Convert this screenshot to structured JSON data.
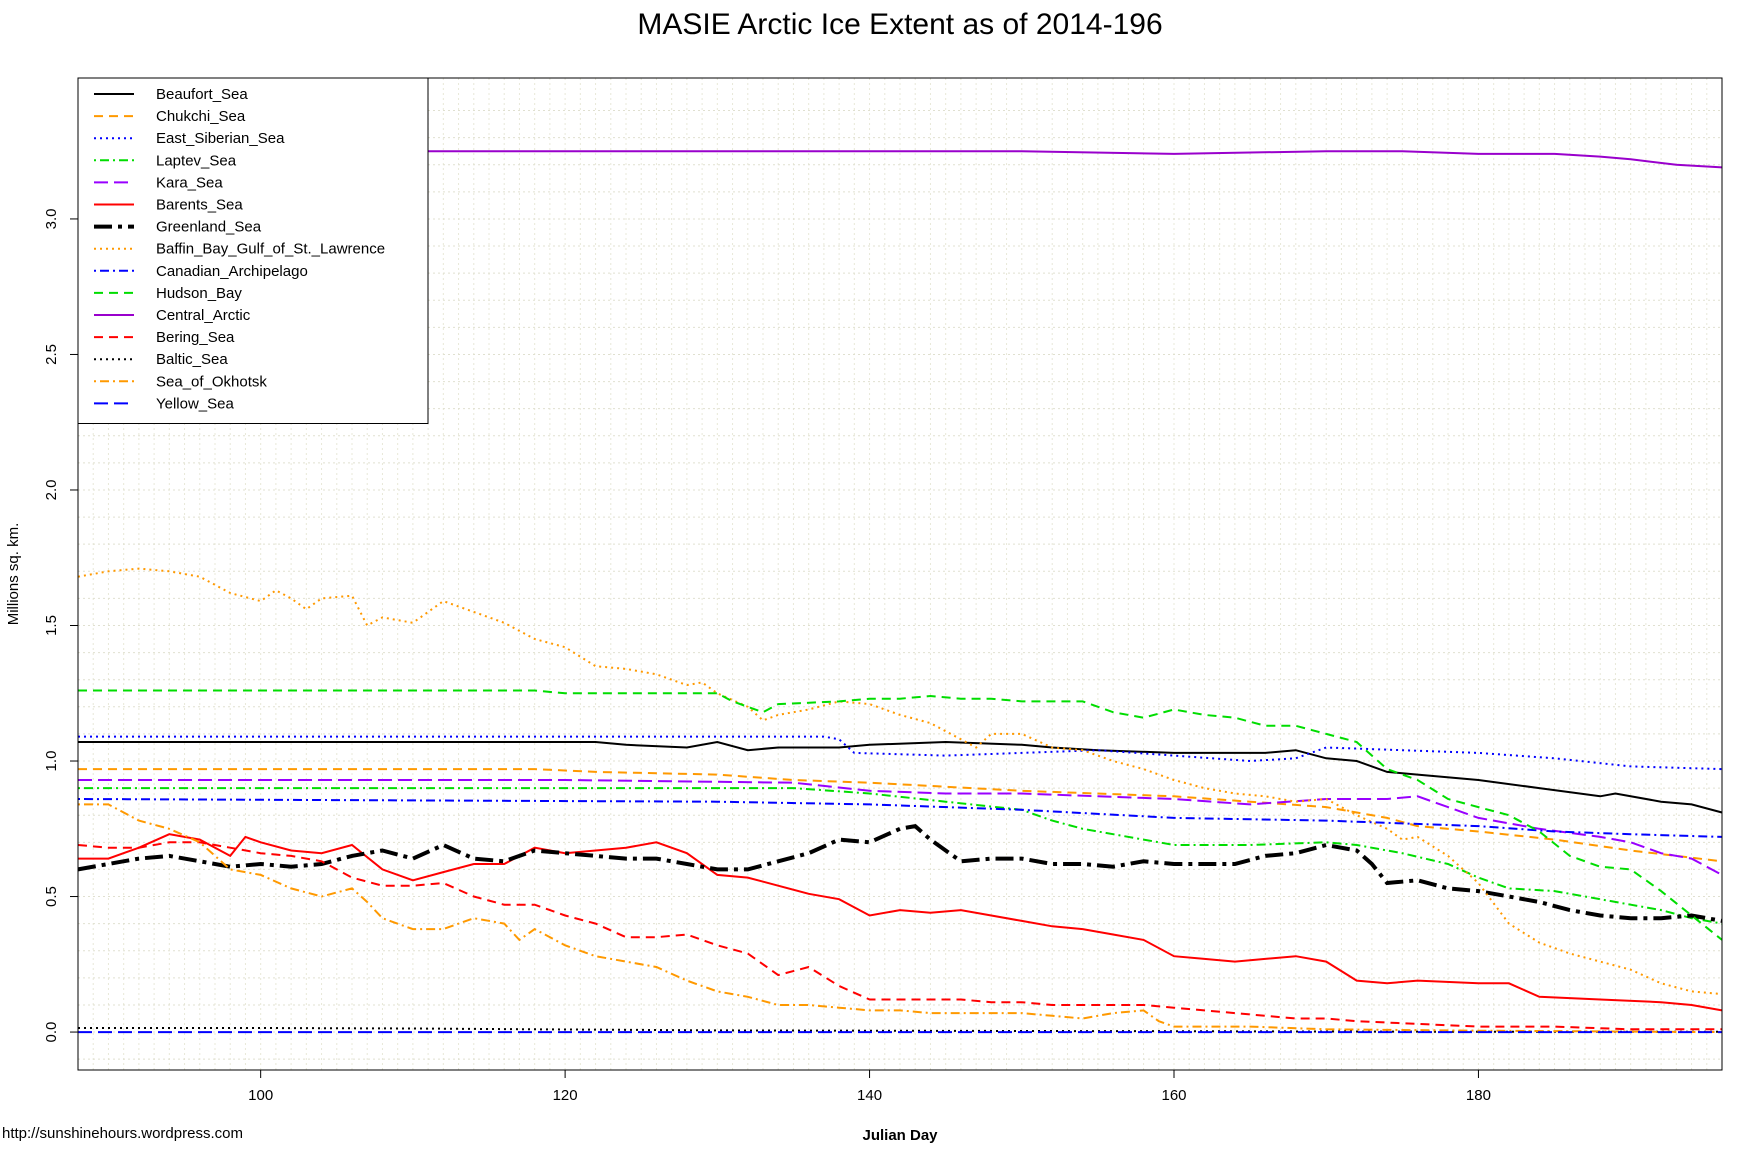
{
  "chart_data": {
    "type": "line",
    "title": "MASIE Arctic Ice Extent as of 2014-196",
    "xlabel": "Julian Day",
    "ylabel": "Millions sq. km.",
    "credit": "http://sunshinehours.wordpress.com",
    "xlim": [
      88,
      196
    ],
    "ylim": [
      -0.14,
      3.52
    ],
    "xticks": [
      100,
      120,
      140,
      160,
      180
    ],
    "yticks": [
      0.0,
      0.5,
      1.0,
      1.5,
      2.0,
      2.5,
      3.0
    ],
    "ytick_labels": [
      "0.0",
      "0.5",
      "1.0",
      "1.5",
      "2.0",
      "2.5",
      "3.0"
    ],
    "grid": true,
    "legend_position": "top-left",
    "series": [
      {
        "name": "Beaufort_Sea",
        "color": "#000000",
        "dash": "solid",
        "width": 2,
        "x": [
          88,
          122,
          124,
          128,
          130,
          132,
          134,
          138,
          140,
          145,
          150,
          152,
          155,
          160,
          166,
          168,
          170,
          172,
          174,
          176,
          180,
          184,
          188,
          189,
          192,
          194,
          196
        ],
        "y": [
          1.07,
          1.07,
          1.06,
          1.05,
          1.07,
          1.04,
          1.05,
          1.05,
          1.06,
          1.07,
          1.06,
          1.05,
          1.04,
          1.03,
          1.03,
          1.04,
          1.01,
          1.0,
          0.96,
          0.95,
          0.93,
          0.9,
          0.87,
          0.88,
          0.85,
          0.84,
          0.81
        ]
      },
      {
        "name": "Chukchi_Sea",
        "color": "#ff9900",
        "dash": "dashed",
        "width": 2,
        "x": [
          88,
          118,
          122,
          130,
          135,
          140,
          150,
          160,
          165,
          170,
          172,
          174,
          176,
          180,
          185,
          190,
          196
        ],
        "y": [
          0.97,
          0.97,
          0.96,
          0.95,
          0.93,
          0.92,
          0.89,
          0.87,
          0.85,
          0.83,
          0.81,
          0.79,
          0.76,
          0.74,
          0.71,
          0.67,
          0.63
        ]
      },
      {
        "name": "East_Siberian_Sea",
        "color": "#0000ff",
        "dash": "dotted",
        "width": 2,
        "x": [
          88,
          137,
          138,
          139,
          145,
          150,
          155,
          160,
          165,
          168,
          170,
          175,
          180,
          185,
          190,
          196
        ],
        "y": [
          1.09,
          1.09,
          1.08,
          1.03,
          1.02,
          1.03,
          1.04,
          1.02,
          1.0,
          1.01,
          1.05,
          1.04,
          1.03,
          1.01,
          0.98,
          0.97
        ]
      },
      {
        "name": "Laptev_Sea",
        "color": "#00dd00",
        "dash": "dotdash",
        "width": 2,
        "x": [
          88,
          130,
          135,
          140,
          145,
          150,
          152,
          154,
          156,
          158,
          160,
          165,
          170,
          172,
          175,
          178,
          180,
          182,
          185,
          188,
          190,
          192,
          194,
          196
        ],
        "y": [
          0.9,
          0.9,
          0.9,
          0.88,
          0.85,
          0.82,
          0.78,
          0.75,
          0.73,
          0.71,
          0.69,
          0.69,
          0.7,
          0.69,
          0.66,
          0.62,
          0.57,
          0.53,
          0.52,
          0.49,
          0.47,
          0.45,
          0.42,
          0.4
        ]
      },
      {
        "name": "Kara_Sea",
        "color": "#9900ff",
        "dash": "longdash",
        "width": 2,
        "x": [
          88,
          110,
          120,
          135,
          140,
          145,
          150,
          155,
          160,
          165,
          170,
          172,
          174,
          176,
          178,
          180,
          184,
          188,
          190,
          192,
          194,
          196
        ],
        "y": [
          0.93,
          0.93,
          0.93,
          0.92,
          0.89,
          0.88,
          0.88,
          0.87,
          0.86,
          0.84,
          0.86,
          0.86,
          0.86,
          0.87,
          0.83,
          0.79,
          0.75,
          0.72,
          0.7,
          0.66,
          0.64,
          0.58
        ]
      },
      {
        "name": "Barents_Sea",
        "color": "#ff0000",
        "dash": "solid",
        "width": 2,
        "x": [
          88,
          90,
          92,
          94,
          96,
          98,
          99,
          100,
          102,
          104,
          106,
          108,
          110,
          112,
          114,
          116,
          118,
          120,
          122,
          124,
          126,
          128,
          130,
          132,
          134,
          136,
          138,
          140,
          142,
          144,
          146,
          148,
          150,
          152,
          154,
          156,
          158,
          160,
          162,
          164,
          166,
          168,
          170,
          172,
          174,
          176,
          180,
          182,
          184,
          188,
          192,
          194,
          196
        ],
        "y": [
          0.64,
          0.64,
          0.68,
          0.73,
          0.71,
          0.65,
          0.72,
          0.7,
          0.67,
          0.66,
          0.69,
          0.6,
          0.56,
          0.59,
          0.62,
          0.62,
          0.68,
          0.66,
          0.67,
          0.68,
          0.7,
          0.66,
          0.58,
          0.57,
          0.54,
          0.51,
          0.49,
          0.43,
          0.45,
          0.44,
          0.45,
          0.43,
          0.41,
          0.39,
          0.38,
          0.36,
          0.34,
          0.28,
          0.27,
          0.26,
          0.27,
          0.28,
          0.26,
          0.19,
          0.18,
          0.19,
          0.18,
          0.18,
          0.13,
          0.12,
          0.11,
          0.1,
          0.08
        ]
      },
      {
        "name": "Greenland_Sea",
        "color": "#000000",
        "dash": "bigdash",
        "width": 4,
        "x": [
          88,
          90,
          92,
          94,
          96,
          98,
          100,
          102,
          104,
          106,
          108,
          110,
          112,
          114,
          116,
          118,
          120,
          122,
          124,
          126,
          128,
          130,
          132,
          134,
          136,
          138,
          140,
          142,
          143,
          144,
          146,
          148,
          150,
          152,
          154,
          156,
          158,
          160,
          162,
          164,
          166,
          168,
          170,
          172,
          173,
          174,
          176,
          178,
          180,
          182,
          184,
          186,
          188,
          190,
          192,
          194,
          196
        ],
        "y": [
          0.6,
          0.62,
          0.64,
          0.65,
          0.63,
          0.61,
          0.62,
          0.61,
          0.62,
          0.65,
          0.67,
          0.64,
          0.69,
          0.64,
          0.63,
          0.67,
          0.66,
          0.65,
          0.64,
          0.64,
          0.62,
          0.6,
          0.6,
          0.63,
          0.66,
          0.71,
          0.7,
          0.75,
          0.76,
          0.71,
          0.63,
          0.64,
          0.64,
          0.62,
          0.62,
          0.61,
          0.63,
          0.62,
          0.62,
          0.62,
          0.65,
          0.66,
          0.69,
          0.67,
          0.62,
          0.55,
          0.56,
          0.53,
          0.52,
          0.5,
          0.48,
          0.45,
          0.43,
          0.42,
          0.42,
          0.43,
          0.41
        ]
      },
      {
        "name": "Baffin_Bay_Gulf_of_St._Lawrence",
        "color": "#ff9900",
        "dash": "dotted",
        "width": 2,
        "x": [
          88,
          90,
          92,
          94,
          96,
          98,
          100,
          101,
          102,
          103,
          104,
          106,
          107,
          108,
          110,
          112,
          114,
          116,
          118,
          120,
          122,
          124,
          126,
          128,
          129,
          130,
          132,
          133,
          134,
          136,
          138,
          140,
          142,
          144,
          146,
          147,
          148,
          150,
          152,
          154,
          156,
          158,
          160,
          162,
          164,
          166,
          168,
          170,
          172,
          174,
          175,
          176,
          178,
          180,
          182,
          184,
          186,
          188,
          190,
          192,
          194,
          196
        ],
        "y": [
          1.68,
          1.7,
          1.71,
          1.7,
          1.68,
          1.62,
          1.59,
          1.63,
          1.6,
          1.56,
          1.6,
          1.61,
          1.5,
          1.53,
          1.51,
          1.59,
          1.55,
          1.51,
          1.45,
          1.42,
          1.35,
          1.34,
          1.32,
          1.28,
          1.29,
          1.25,
          1.2,
          1.15,
          1.17,
          1.19,
          1.22,
          1.21,
          1.17,
          1.14,
          1.08,
          1.05,
          1.1,
          1.1,
          1.05,
          1.04,
          1.0,
          0.97,
          0.93,
          0.9,
          0.88,
          0.87,
          0.85,
          0.86,
          0.8,
          0.75,
          0.71,
          0.72,
          0.65,
          0.55,
          0.4,
          0.33,
          0.29,
          0.26,
          0.23,
          0.18,
          0.15,
          0.14
        ]
      },
      {
        "name": "Canadian_Archipelago",
        "color": "#0000ff",
        "dash": "dotdash",
        "width": 2,
        "x": [
          88,
          130,
          140,
          150,
          160,
          170,
          175,
          180,
          185,
          190,
          196
        ],
        "y": [
          0.86,
          0.85,
          0.84,
          0.82,
          0.79,
          0.78,
          0.77,
          0.76,
          0.74,
          0.73,
          0.72
        ]
      },
      {
        "name": "Hudson_Bay",
        "color": "#00dd00",
        "dash": "dashed",
        "width": 2,
        "x": [
          88,
          118,
          120,
          128,
          130,
          131,
          133,
          134,
          138,
          140,
          142,
          144,
          146,
          148,
          150,
          154,
          156,
          158,
          160,
          162,
          164,
          166,
          168,
          170,
          172,
          174,
          176,
          178,
          180,
          182,
          184,
          186,
          188,
          190,
          192,
          194,
          196
        ],
        "y": [
          1.26,
          1.26,
          1.25,
          1.25,
          1.25,
          1.22,
          1.18,
          1.21,
          1.22,
          1.23,
          1.23,
          1.24,
          1.23,
          1.23,
          1.22,
          1.22,
          1.18,
          1.16,
          1.19,
          1.17,
          1.16,
          1.13,
          1.13,
          1.1,
          1.07,
          0.97,
          0.93,
          0.86,
          0.83,
          0.8,
          0.74,
          0.65,
          0.61,
          0.6,
          0.52,
          0.43,
          0.34
        ]
      },
      {
        "name": "Central_Arctic",
        "color": "#9900cc",
        "dash": "solid",
        "width": 2,
        "x": [
          88,
          90,
          92,
          100,
          110,
          120,
          130,
          140,
          150,
          160,
          170,
          175,
          180,
          185,
          188,
          190,
          193,
          196
        ],
        "y": [
          3.22,
          3.23,
          3.24,
          3.25,
          3.25,
          3.25,
          3.25,
          3.25,
          3.25,
          3.24,
          3.25,
          3.25,
          3.24,
          3.24,
          3.23,
          3.22,
          3.2,
          3.19
        ]
      },
      {
        "name": "Bering_Sea",
        "color": "#ff0000",
        "dash": "dashed",
        "width": 2,
        "x": [
          88,
          90,
          92,
          94,
          96,
          98,
          100,
          102,
          104,
          106,
          108,
          110,
          112,
          114,
          116,
          118,
          120,
          122,
          124,
          126,
          128,
          130,
          132,
          134,
          136,
          138,
          140,
          142,
          144,
          146,
          148,
          150,
          152,
          154,
          156,
          158,
          160,
          162,
          164,
          166,
          168,
          170,
          172,
          176,
          180,
          185,
          190,
          196
        ],
        "y": [
          0.69,
          0.68,
          0.68,
          0.7,
          0.7,
          0.68,
          0.66,
          0.65,
          0.63,
          0.57,
          0.54,
          0.54,
          0.55,
          0.5,
          0.47,
          0.47,
          0.43,
          0.4,
          0.35,
          0.35,
          0.36,
          0.32,
          0.29,
          0.21,
          0.24,
          0.17,
          0.12,
          0.12,
          0.12,
          0.12,
          0.11,
          0.11,
          0.1,
          0.1,
          0.1,
          0.1,
          0.09,
          0.08,
          0.07,
          0.06,
          0.05,
          0.05,
          0.04,
          0.03,
          0.02,
          0.02,
          0.01,
          0.01
        ]
      },
      {
        "name": "Baltic_Sea",
        "color": "#000000",
        "dash": "dotted",
        "width": 2,
        "x": [
          88,
          100,
          110,
          118,
          125,
          130,
          140,
          150,
          160,
          170,
          180,
          190,
          196
        ],
        "y": [
          0.015,
          0.015,
          0.013,
          0.01,
          0.008,
          0.006,
          0.005,
          0.004,
          0.003,
          0.002,
          0.001,
          0.001,
          0.001
        ]
      },
      {
        "name": "Sea_of_Okhotsk",
        "color": "#ff9900",
        "dash": "dotdash",
        "width": 2,
        "x": [
          88,
          90,
          91,
          92,
          94,
          96,
          98,
          100,
          102,
          104,
          106,
          107,
          108,
          110,
          112,
          114,
          116,
          117,
          118,
          120,
          122,
          124,
          126,
          128,
          130,
          132,
          134,
          136,
          138,
          140,
          142,
          144,
          146,
          148,
          150,
          152,
          154,
          156,
          158,
          159,
          160,
          165,
          170,
          180,
          196
        ],
        "y": [
          0.84,
          0.84,
          0.81,
          0.78,
          0.75,
          0.7,
          0.6,
          0.58,
          0.53,
          0.5,
          0.53,
          0.48,
          0.42,
          0.38,
          0.38,
          0.42,
          0.4,
          0.34,
          0.38,
          0.32,
          0.28,
          0.26,
          0.24,
          0.19,
          0.15,
          0.13,
          0.1,
          0.1,
          0.09,
          0.08,
          0.08,
          0.07,
          0.07,
          0.07,
          0.07,
          0.06,
          0.05,
          0.07,
          0.08,
          0.04,
          0.02,
          0.02,
          0.01,
          0.005,
          0.0
        ]
      },
      {
        "name": "Yellow_Sea",
        "color": "#0000ff",
        "dash": "longdash",
        "width": 2,
        "x": [
          88,
          196
        ],
        "y": [
          0.0,
          0.0
        ]
      }
    ]
  }
}
